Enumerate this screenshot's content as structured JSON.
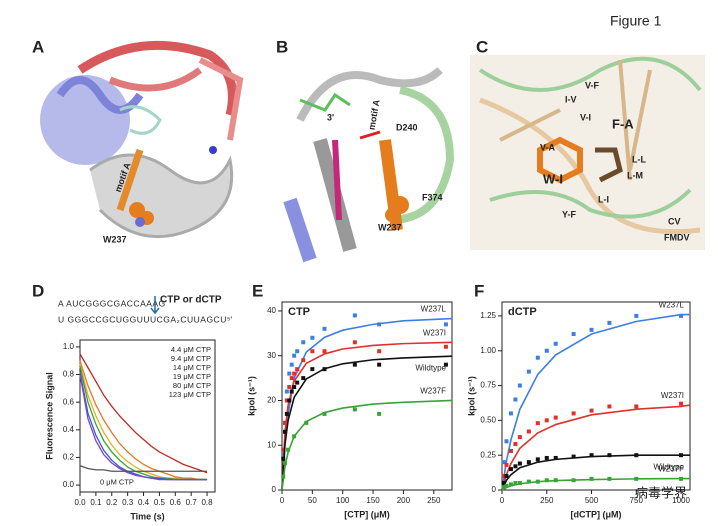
{
  "figure_title": "Figure 1",
  "watermark": "病毒学界",
  "panels": [
    {
      "letter": "A",
      "labels": [
        "motif A",
        "W237"
      ]
    },
    {
      "letter": "B",
      "labels": [
        "3'",
        "D240",
        "motif A",
        "W237",
        "F374"
      ]
    },
    {
      "letter": "C",
      "labels": [
        "V-F",
        "I-V",
        "V-I",
        "V-A",
        "W-I",
        "F-A",
        "L-L",
        "L-M",
        "L-I",
        "Y-F",
        "CV",
        "FMDV"
      ]
    },
    {
      "letter": "D"
    },
    {
      "letter": "E"
    },
    {
      "letter": "F"
    }
  ],
  "chart_data": [
    {
      "type": "line",
      "annotation": "CTP or dCTP",
      "template_lines": [
        "A AUCGGGCGACCAAAG",
        "U GGGCCGCUGGUUUCGA₂CUUAGCU⁵'"
      ],
      "xlabel": "Time (s)",
      "ylabel": "Fluorescence Signal",
      "xlim": [
        0,
        0.85
      ],
      "ylim": [
        -0.05,
        1.05
      ],
      "xticks": [
        {
          "value": 0,
          "label": "0.0"
        },
        0.1,
        0.2,
        0.3,
        0.4,
        0.5,
        0.6,
        0.7,
        0.8
      ],
      "yticks": [
        {
          "value": 0,
          "label": "0.0"
        },
        0.2,
        0.4,
        0.6,
        0.8,
        {
          "value": 1,
          "label": "1.0"
        }
      ],
      "x": [
        0,
        0.05,
        0.1,
        0.15,
        0.2,
        0.25,
        0.3,
        0.35,
        0.4,
        0.45,
        0.5,
        0.55,
        0.6,
        0.65,
        0.7,
        0.75,
        0.8
      ],
      "series": [
        {
          "name": "4.4 μM CTP",
          "color": "#c0281e",
          "values": [
            0.95,
            0.85,
            0.75,
            0.65,
            0.57,
            0.5,
            0.44,
            0.38,
            0.33,
            0.28,
            0.24,
            0.21,
            0.18,
            0.15,
            0.13,
            0.11,
            0.09
          ]
        },
        {
          "name": "9.4 μM CTP",
          "color": "#e8762a",
          "values": [
            0.9,
            0.72,
            0.58,
            0.47,
            0.38,
            0.3,
            0.24,
            0.19,
            0.15,
            0.12,
            0.1,
            0.08,
            0.06,
            0.05,
            0.05,
            0.04,
            0.04
          ]
        },
        {
          "name": "14 μM CTP",
          "color": "#e8b020",
          "values": [
            0.88,
            0.65,
            0.5,
            0.38,
            0.29,
            0.22,
            0.17,
            0.13,
            0.1,
            0.08,
            0.06,
            0.05,
            0.05,
            0.04,
            0.04,
            0.04,
            0.04
          ]
        },
        {
          "name": "19 μM CTP",
          "color": "#3aa335",
          "values": [
            0.86,
            0.6,
            0.44,
            0.32,
            0.24,
            0.18,
            0.13,
            0.1,
            0.08,
            0.06,
            0.05,
            0.05,
            0.04,
            0.04,
            0.04,
            0.04,
            0.04
          ]
        },
        {
          "name": "80 μM CTP",
          "color": "#2f5fd0",
          "values": [
            0.82,
            0.52,
            0.36,
            0.25,
            0.18,
            0.13,
            0.1,
            0.08,
            0.06,
            0.05,
            0.05,
            0.04,
            0.04,
            0.04,
            0.04,
            0.04,
            0.04
          ]
        },
        {
          "name": "123 μM CTP",
          "color": "#8a3fc8",
          "values": [
            0.8,
            0.48,
            0.32,
            0.22,
            0.16,
            0.12,
            0.09,
            0.07,
            0.06,
            0.05,
            0.04,
            0.04,
            0.04,
            0.04,
            0.04,
            0.04,
            0.04
          ]
        },
        {
          "name": "0 μM CTP",
          "color": "#555555",
          "values": [
            0.14,
            0.12,
            0.11,
            0.11,
            0.1,
            0.1,
            0.1,
            0.1,
            0.1,
            0.1,
            0.1,
            0.1,
            0.1,
            0.1,
            0.1,
            0.1,
            0.1
          ]
        }
      ]
    },
    {
      "type": "scatter",
      "title": "CTP",
      "xlabel": "[CTP] (μM)",
      "ylabel": "kpol (s⁻¹)",
      "xlim": [
        0,
        280
      ],
      "ylim": [
        0,
        42
      ],
      "xticks": [
        0,
        50,
        100,
        150,
        200,
        250
      ],
      "yticks": [
        0,
        10,
        20,
        30,
        40
      ],
      "fit_x": [
        0,
        5,
        10,
        20,
        40,
        70,
        100,
        150,
        200,
        280
      ],
      "series": [
        {
          "name": "W237L",
          "color": "#3d7fe0",
          "x": [
            2,
            5,
            8,
            12,
            16,
            20,
            25,
            35,
            50,
            70,
            120,
            160,
            270
          ],
          "values": [
            8,
            15,
            22,
            26,
            28,
            30,
            31,
            33,
            34,
            36,
            39,
            37,
            37
          ],
          "fit": [
            0,
            11.8,
            16.9,
            25,
            30.8,
            34.1,
            35.7,
            37,
            37.8,
            38.3
          ]
        },
        {
          "name": "W237I",
          "color": "#e0302a",
          "x": [
            2,
            5,
            8,
            12,
            16,
            20,
            25,
            35,
            50,
            70,
            120,
            160,
            270
          ],
          "values": [
            9,
            15,
            20,
            23,
            25,
            26,
            27,
            29,
            31,
            31,
            33,
            31,
            32
          ],
          "fit": [
            0,
            13.1,
            18.9,
            24.3,
            28.3,
            30.4,
            31.5,
            32.3,
            32.7,
            33
          ]
        },
        {
          "name": "Wildtype",
          "color": "#111111",
          "x": [
            2,
            5,
            8,
            12,
            16,
            20,
            25,
            35,
            50,
            70,
            120,
            160,
            270
          ],
          "values": [
            7,
            13,
            17,
            20,
            22,
            23,
            24,
            25,
            27,
            27,
            28,
            28,
            28
          ],
          "fit": [
            0,
            10.3,
            15.5,
            20.7,
            24.8,
            27.1,
            28.2,
            29.1,
            29.5,
            29.9
          ]
        },
        {
          "name": "W237F",
          "color": "#3aa335",
          "x": [
            2,
            5,
            10,
            20,
            40,
            70,
            120,
            160
          ],
          "values": [
            3,
            6,
            9,
            12,
            15,
            17,
            18,
            17
          ],
          "fit": [
            0,
            5.3,
            8.4,
            12,
            15.3,
            17.3,
            18.3,
            19.2,
            19.6,
            20
          ]
        }
      ]
    },
    {
      "type": "scatter",
      "title": "dCTP",
      "xlabel": "[dCTP] (μM)",
      "ylabel": "kpol (s⁻¹)",
      "xlim": [
        0,
        1050
      ],
      "ylim": [
        0,
        1.35
      ],
      "xticks": [
        0,
        250,
        500,
        750,
        1000
      ],
      "yticks": [
        0,
        0.25,
        {
          "value": 0.5,
          "label": "0.50"
        },
        0.75,
        {
          "value": 1,
          "label": "1.00"
        },
        1.25
      ],
      "fit_x": [
        0,
        25,
        50,
        100,
        200,
        300,
        500,
        750,
        1000,
        1050
      ],
      "series": [
        {
          "name": "W237L",
          "color": "#3d7fe0",
          "x": [
            10,
            25,
            50,
            75,
            100,
            150,
            200,
            250,
            300,
            400,
            500,
            600,
            750,
            1000
          ],
          "values": [
            0.2,
            0.35,
            0.55,
            0.65,
            0.75,
            0.85,
            0.95,
            1,
            1.05,
            1.12,
            1.15,
            1.2,
            1.25,
            1.25
          ],
          "fit": [
            0,
            0.21,
            0.36,
            0.58,
            0.83,
            0.97,
            1.12,
            1.21,
            1.26,
            1.26
          ]
        },
        {
          "name": "W237I",
          "color": "#e0302a",
          "x": [
            10,
            25,
            50,
            75,
            100,
            150,
            200,
            250,
            300,
            400,
            500,
            600,
            750,
            1000
          ],
          "values": [
            0.1,
            0.18,
            0.28,
            0.33,
            0.38,
            0.42,
            0.48,
            0.5,
            0.52,
            0.55,
            0.57,
            0.6,
            0.6,
            0.62
          ],
          "fit": [
            0,
            0.11,
            0.19,
            0.3,
            0.41,
            0.47,
            0.54,
            0.58,
            0.6,
            0.61
          ]
        },
        {
          "name": "Wildtype",
          "color": "#111111",
          "x": [
            10,
            25,
            50,
            75,
            100,
            150,
            200,
            250,
            300,
            400,
            500,
            600,
            750,
            1000
          ],
          "values": [
            0.05,
            0.1,
            0.15,
            0.17,
            0.19,
            0.2,
            0.22,
            0.23,
            0.23,
            0.24,
            0.25,
            0.25,
            0.25,
            0.25
          ],
          "fit": [
            0,
            0.07,
            0.11,
            0.16,
            0.2,
            0.22,
            0.24,
            0.25,
            0.25,
            0.25
          ]
        },
        {
          "name": "W237F",
          "color": "#3aa335",
          "x": [
            10,
            25,
            50,
            75,
            100,
            150,
            200,
            250,
            300,
            400,
            500,
            600,
            750,
            1000
          ],
          "values": [
            0.02,
            0.03,
            0.04,
            0.05,
            0.05,
            0.06,
            0.06,
            0.07,
            0.07,
            0.07,
            0.08,
            0.08,
            0.08,
            0.08
          ],
          "fit": [
            0,
            0.018,
            0.03,
            0.045,
            0.06,
            0.068,
            0.075,
            0.08,
            0.082,
            0.082
          ]
        }
      ]
    }
  ]
}
